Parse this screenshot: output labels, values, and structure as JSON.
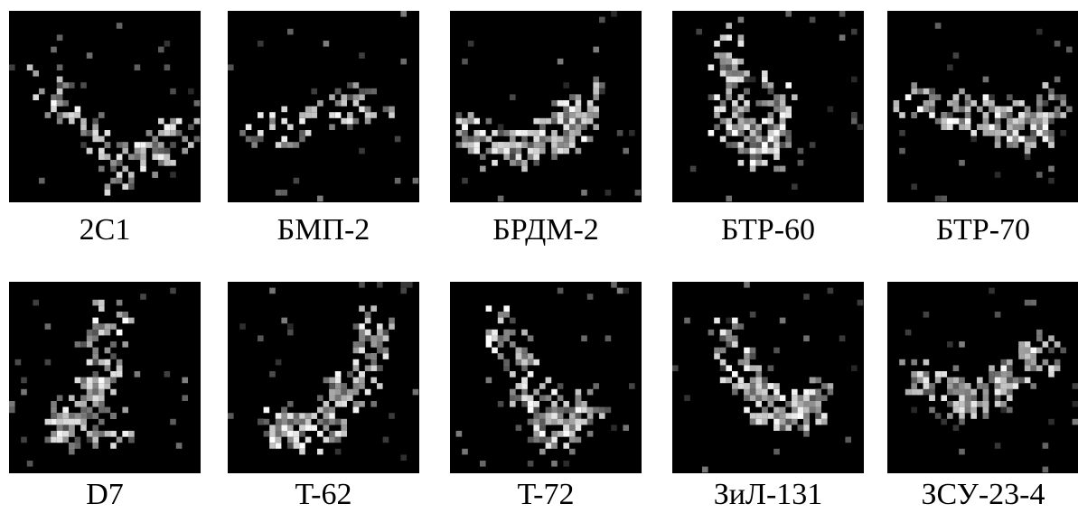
{
  "figure": {
    "panels": [
      {
        "label": "2С1"
      },
      {
        "label": "БМП-2"
      },
      {
        "label": "БРДМ-2"
      },
      {
        "label": "БТР-60"
      },
      {
        "label": "БТР-70"
      },
      {
        "label": "D7"
      },
      {
        "label": "T-62"
      },
      {
        "label": "T-72"
      },
      {
        "label": "ЗиЛ-131"
      },
      {
        "label": "ЗСУ-23-4"
      }
    ]
  }
}
